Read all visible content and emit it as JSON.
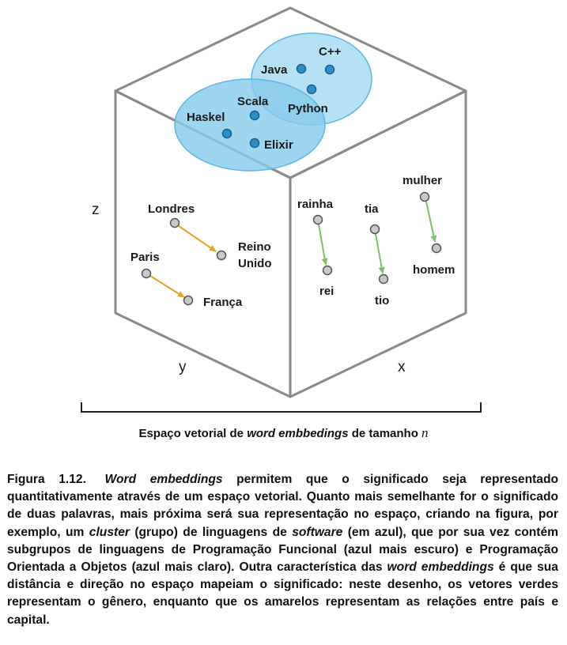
{
  "axes": {
    "z": "z",
    "y": "y",
    "x": "x"
  },
  "software_cluster": {
    "light_color": "#A9DCF2",
    "dark_color": "#86CBEB",
    "point_color": "#2E8FC8",
    "oop_languages": [
      "Java",
      "C++",
      "Python"
    ],
    "functional_languages": [
      "Haskel",
      "Scala",
      "Elixir"
    ]
  },
  "country_capital_pairs": {
    "arrow_color": "#E0A526",
    "pairs": [
      {
        "from": "Londres",
        "to_line1": "Reino",
        "to_line2": "Unido"
      },
      {
        "from": "Paris",
        "to": "França"
      }
    ]
  },
  "gender_pairs": {
    "arrow_color": "#7DBF6A",
    "pairs": [
      {
        "from": "rainha",
        "to": "rei"
      },
      {
        "from": "tia",
        "to": "tio"
      },
      {
        "from": "mulher",
        "to": "homem"
      }
    ]
  },
  "scale_caption": {
    "prefix": "Espaço vetorial de ",
    "italic": "word embbedings",
    "middle": " de tamanho ",
    "variable": "n"
  },
  "figure_caption": {
    "number": "Figura 1.12.",
    "parts": [
      {
        "text": "Word embeddings",
        "italic": true
      },
      {
        "text": " permitem que o significado seja representado quantitativamente através de um espaço vetorial. Quanto mais semelhante for o significado de duas palavras, mais próxima será sua representação no espaço, criando na figura, por exemplo, um ",
        "italic": false
      },
      {
        "text": "cluster",
        "italic": true
      },
      {
        "text": " (grupo) de linguagens de ",
        "italic": false
      },
      {
        "text": "software",
        "italic": true
      },
      {
        "text": " (em azul), que por sua vez contém subgrupos de linguagens de Programação Funcional (azul mais escuro) e Programação Orientada a Objetos (azul mais claro). Outra característica das ",
        "italic": false
      },
      {
        "text": "word embeddings",
        "italic": true
      },
      {
        "text": " é que sua distância e direção no espaço mapeiam o significado: neste desenho, os vetores verdes representam o gênero, enquanto que os amarelos representam as relações entre país e capital.",
        "italic": false
      }
    ]
  }
}
